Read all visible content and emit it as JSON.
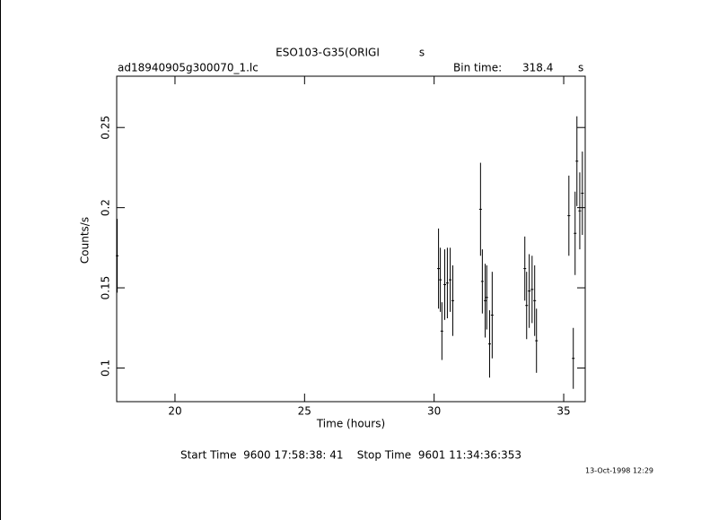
{
  "chart_data": {
    "type": "errorbar",
    "title": "ESO103-G35(ORIGI",
    "title_unit": "s",
    "file_label": "ad18940905g300070_1.lc",
    "bin_label": "Bin time:",
    "bin_time": "318.4",
    "bin_unit": "s",
    "xlabel": "Time (hours)",
    "ylabel": "Counts/s",
    "footer": "Start Time  9600 17:58:38: 41    Stop Time  9601 11:34:36:353",
    "date": "13-Oct-1998 12:29",
    "xlim": [
      17.75,
      35.83
    ],
    "ylim": [
      0.079,
      0.282
    ],
    "xticks": [
      20,
      25,
      30,
      35
    ],
    "yticks": [
      0.1,
      0.15,
      0.2,
      0.25
    ],
    "x": [
      17.77,
      30.17,
      30.24,
      30.3,
      30.41,
      30.51,
      30.62,
      30.72,
      31.79,
      31.86,
      31.97,
      32.03,
      32.14,
      32.24,
      33.5,
      33.57,
      33.67,
      33.78,
      33.88,
      33.95,
      35.2,
      35.37,
      35.44,
      35.51,
      35.62,
      35.72
    ],
    "values": [
      0.17,
      0.162,
      0.155,
      0.123,
      0.152,
      0.153,
      0.155,
      0.142,
      0.199,
      0.154,
      0.142,
      0.144,
      0.115,
      0.133,
      0.162,
      0.139,
      0.148,
      0.149,
      0.142,
      0.117,
      0.195,
      0.106,
      0.184,
      0.229,
      0.198,
      0.209
    ],
    "errors": [
      0.023,
      0.025,
      0.02,
      0.018,
      0.022,
      0.022,
      0.02,
      0.022,
      0.029,
      0.02,
      0.023,
      0.02,
      0.021,
      0.027,
      0.02,
      0.021,
      0.023,
      0.021,
      0.022,
      0.02,
      0.025,
      0.019,
      0.026,
      0.028,
      0.024,
      0.026
    ],
    "color": "#000000"
  }
}
